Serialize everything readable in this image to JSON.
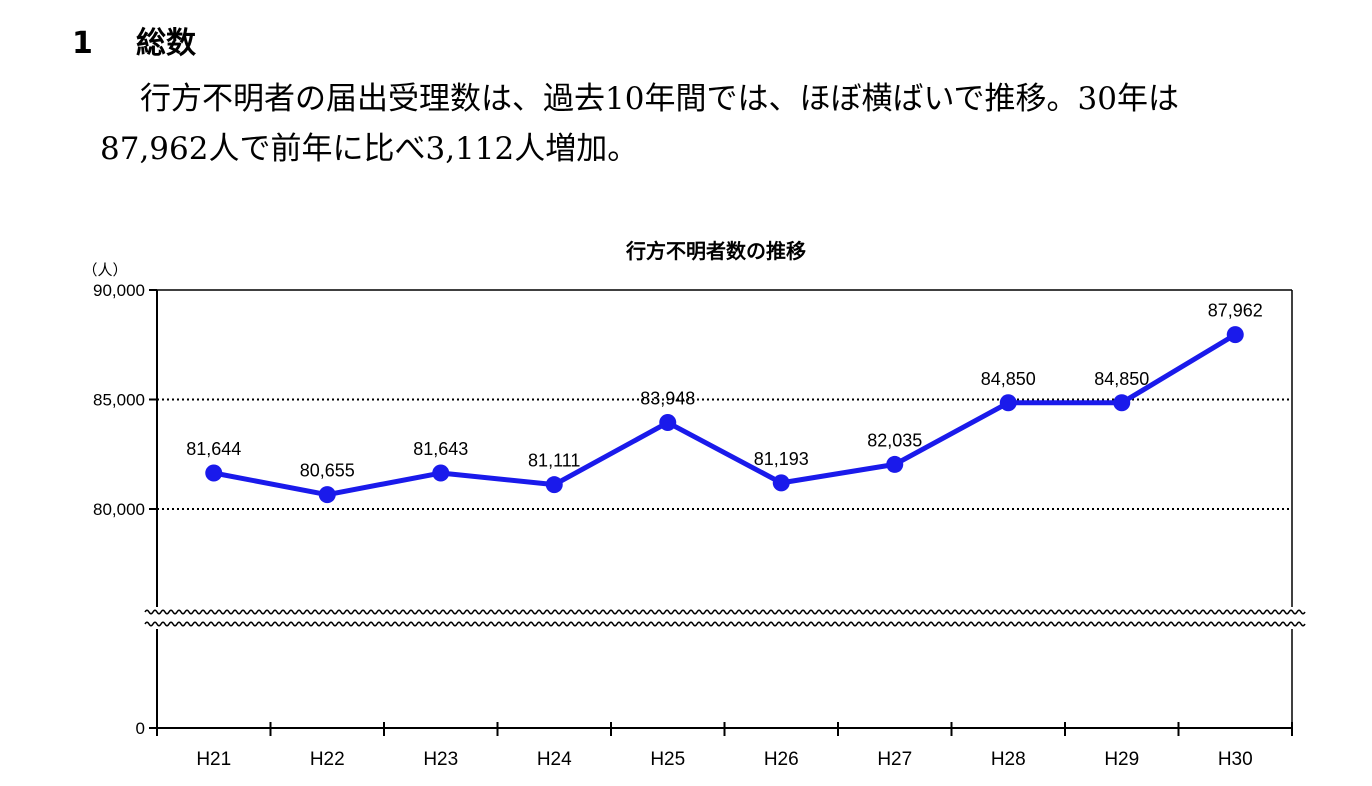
{
  "section": {
    "number": "1",
    "title": "総数"
  },
  "paragraph": {
    "line1": "行方不明者の届出受理数は、過去10年間では、ほぼ横ばいで推移。30年は",
    "line2": "87,962人で前年に比べ3,112人増加。"
  },
  "chart_data": {
    "type": "line",
    "title": "行方不明者数の推移",
    "ylabel": "（人）",
    "xlabel": "",
    "categories": [
      "H21",
      "H22",
      "H23",
      "H24",
      "H25",
      "H26",
      "H27",
      "H28",
      "H29",
      "H30"
    ],
    "series": [
      {
        "values": [
          81644,
          80655,
          81643,
          81111,
          83948,
          81193,
          82035,
          84850,
          84850,
          87962
        ],
        "labels": [
          "81,644",
          "80,655",
          "81,643",
          "81,111",
          "83,948",
          "81,193",
          "82,035",
          "84,850",
          "84,850",
          "87,962"
        ],
        "color": "#1a1aeb"
      }
    ],
    "yticks": [
      {
        "value": 0,
        "label": "0"
      },
      {
        "value": 80000,
        "label": "80,000"
      },
      {
        "value": 85000,
        "label": "85,000"
      },
      {
        "value": 90000,
        "label": "90,000"
      }
    ],
    "ylim": [
      0,
      90000
    ],
    "axis_break": true,
    "grid": "dotted at 80,000 and 85,000"
  }
}
